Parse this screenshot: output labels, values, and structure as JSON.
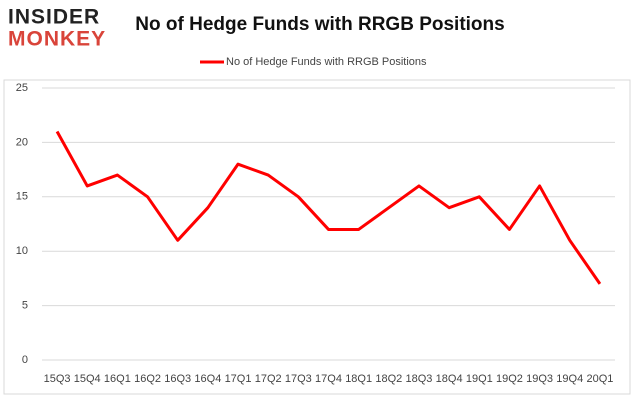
{
  "logo": {
    "top": "INSIDER",
    "bottom": "MONKEY"
  },
  "chart_data": {
    "type": "line",
    "title": "No of Hedge Funds with RRGB Positions",
    "categories": [
      "15Q3",
      "15Q4",
      "16Q1",
      "16Q2",
      "16Q3",
      "16Q4",
      "17Q1",
      "17Q2",
      "17Q3",
      "17Q4",
      "18Q1",
      "18Q2",
      "18Q3",
      "18Q4",
      "19Q1",
      "19Q2",
      "19Q3",
      "19Q4",
      "20Q1"
    ],
    "series": [
      {
        "name": "No of Hedge Funds with RRGB Positions",
        "color": "#ff0000",
        "values": [
          21,
          16,
          17,
          15,
          11,
          14,
          18,
          17,
          15,
          12,
          12,
          14,
          16,
          14,
          15,
          12,
          16,
          11,
          7
        ]
      }
    ],
    "ylim": [
      0,
      25
    ],
    "yticks": [
      0,
      5,
      10,
      15,
      20,
      25
    ],
    "grid": true,
    "legend": "top"
  }
}
